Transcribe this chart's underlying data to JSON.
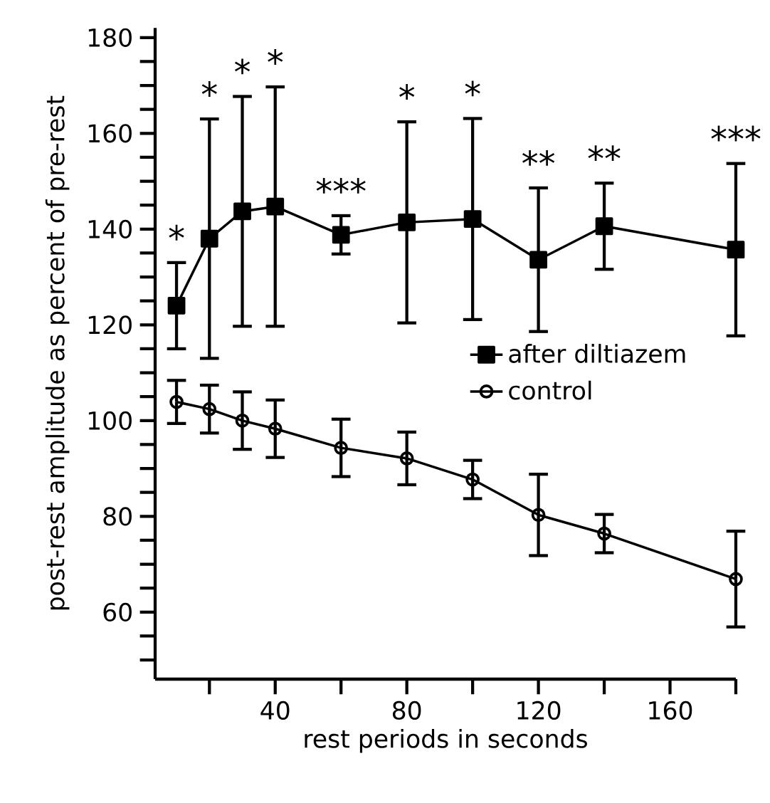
{
  "chart_data": {
    "type": "line",
    "xlabel": "rest periods in seconds",
    "ylabel": "post-rest amplitude as percent of pre-rest",
    "x": [
      10,
      20,
      30,
      40,
      60,
      80,
      100,
      120,
      140,
      180
    ],
    "series": [
      {
        "name": "after diltiazem",
        "color": "#000000",
        "marker": "square",
        "values": [
          124,
          138,
          143.7,
          144.7,
          138.8,
          141.4,
          142.1,
          133.6,
          140.6,
          135.7
        ],
        "errors": [
          9,
          25,
          24,
          25,
          4,
          21,
          21,
          15,
          9,
          18
        ]
      },
      {
        "name": "control",
        "color": "#000000",
        "marker": "circle",
        "values": [
          103.9,
          102.4,
          100,
          98.3,
          94.3,
          92.1,
          87.7,
          80.3,
          76.4,
          66.9
        ],
        "errors": [
          4.5,
          5,
          6,
          6,
          6,
          5.5,
          4,
          8.5,
          4,
          10
        ]
      }
    ],
    "xlim": [
      3.5,
      180
    ],
    "xticks": [
      {
        "value": 20,
        "label": null
      },
      40,
      {
        "value": 60,
        "label": null
      },
      80,
      {
        "value": 100,
        "label": null
      },
      120,
      {
        "value": 140,
        "label": null
      },
      160,
      {
        "value": 180,
        "label": null
      }
    ],
    "ylim": [
      46,
      182
    ],
    "yticks": [
      {
        "value": 50,
        "label": null
      },
      {
        "value": 55,
        "label": null
      },
      60,
      {
        "value": 65,
        "label": null
      },
      {
        "value": 70,
        "label": null
      },
      {
        "value": 75,
        "label": null
      },
      80,
      {
        "value": 85,
        "label": null
      },
      {
        "value": 90,
        "label": null
      },
      {
        "value": 95,
        "label": null
      },
      100,
      {
        "value": 105,
        "label": null
      },
      {
        "value": 110,
        "label": null
      },
      {
        "value": 115,
        "label": null
      },
      120,
      {
        "value": 125,
        "label": null
      },
      {
        "value": 130,
        "label": null
      },
      {
        "value": 135,
        "label": null
      },
      140,
      {
        "value": 145,
        "label": null
      },
      {
        "value": 150,
        "label": null
      },
      {
        "value": 155,
        "label": null
      },
      160,
      {
        "value": 165,
        "label": null
      },
      {
        "value": 170,
        "label": null
      },
      {
        "value": 175,
        "label": null
      },
      180
    ],
    "legend": "right",
    "line_style": "solid",
    "annotations": [
      "*",
      "*",
      "*",
      "*",
      "***",
      "*",
      "*",
      "**",
      "**",
      "***"
    ]
  }
}
